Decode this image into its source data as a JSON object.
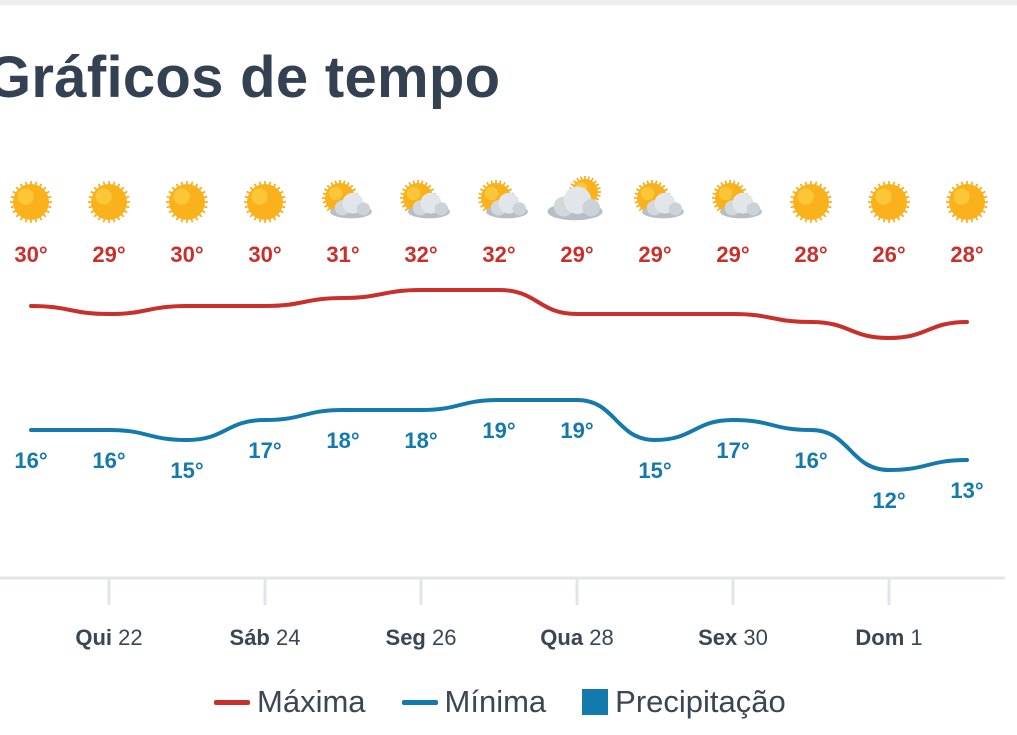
{
  "header": {
    "title": "Gráficos de tempo"
  },
  "colors": {
    "max": "#c9302c",
    "min": "#1479ad",
    "precip": "#1479ad",
    "axis": "#e2e4e7",
    "sun": "#f9b21b",
    "cloud": "#c6ccd3"
  },
  "chart_data": {
    "type": "line",
    "title": "Gráficos de tempo",
    "xlabel": "",
    "ylabel": "",
    "x_tick_labels": [
      {
        "day": "Qui",
        "num": "22",
        "index": 1
      },
      {
        "day": "Sáb",
        "num": "24",
        "index": 3
      },
      {
        "day": "Seg",
        "num": "26",
        "index": 5
      },
      {
        "day": "Qua",
        "num": "28",
        "index": 7
      },
      {
        "day": "Sex",
        "num": "30",
        "index": 9
      },
      {
        "day": "Dom",
        "num": "1",
        "index": 11
      }
    ],
    "weather_icons": [
      "sun-icon",
      "sun-icon",
      "sun-icon",
      "sun-icon",
      "partly-cloudy-icon",
      "partly-cloudy-icon",
      "partly-cloudy-icon",
      "cloudy-icon",
      "partly-cloudy-icon",
      "partly-cloudy-icon",
      "sun-icon",
      "sun-icon",
      "sun-icon"
    ],
    "series": [
      {
        "name": "Máxima",
        "color": "#c9302c",
        "values": [
          30,
          29,
          30,
          30,
          31,
          32,
          32,
          29,
          29,
          29,
          28,
          26,
          28
        ],
        "labels": [
          "30°",
          "29°",
          "30°",
          "30°",
          "31°",
          "32°",
          "32°",
          "29°",
          "29°",
          "29°",
          "28°",
          "26°",
          "28°"
        ]
      },
      {
        "name": "Mínima",
        "color": "#1479ad",
        "values": [
          16,
          16,
          15,
          17,
          18,
          18,
          19,
          19,
          15,
          17,
          16,
          12,
          13
        ],
        "labels": [
          "16°",
          "16°",
          "15°",
          "17°",
          "18°",
          "18°",
          "19°",
          "19°",
          "15°",
          "17°",
          "16°",
          "12°",
          "13°"
        ]
      }
    ],
    "legend": [
      {
        "label": "Máxima",
        "kind": "line",
        "color": "#c9302c"
      },
      {
        "label": "Mínima",
        "kind": "line",
        "color": "#1479ad"
      },
      {
        "label": "Precipitação",
        "kind": "box",
        "color": "#1479ad"
      }
    ],
    "legend_position": "bottom",
    "grid": false
  }
}
